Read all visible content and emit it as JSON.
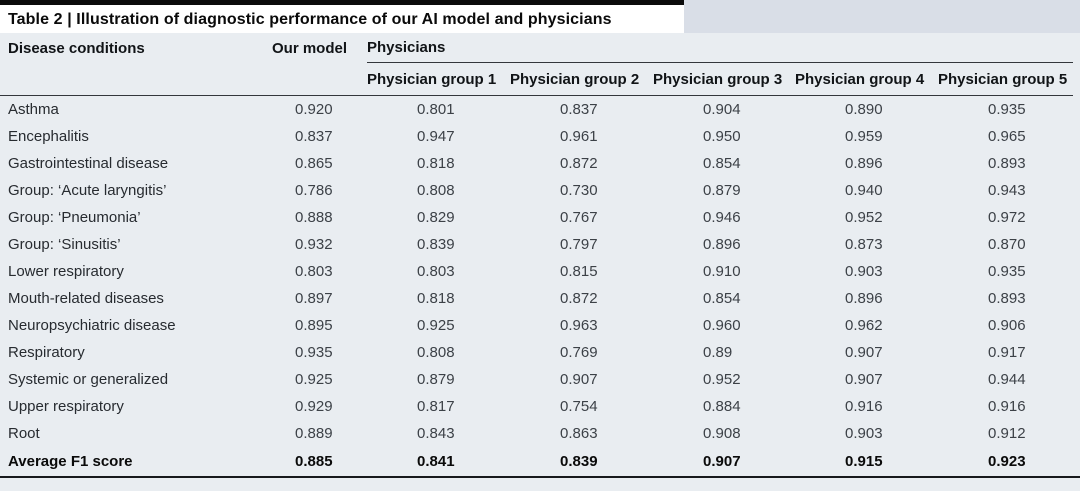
{
  "title": "Table 2 | Illustration of diagnostic performance of our AI model and physicians",
  "table": {
    "columns": {
      "disease": "Disease conditions",
      "our_model": "Our model",
      "physicians": "Physicians",
      "physician_groups": [
        "Physician group 1",
        "Physician group 2",
        "Physician group 3",
        "Physician group 4",
        "Physician group 5"
      ]
    },
    "rows": [
      {
        "disease": "Asthma",
        "values": [
          "0.920",
          "0.801",
          "0.837",
          "0.904",
          "0.890",
          "0.935"
        ],
        "bold": false
      },
      {
        "disease": "Encephalitis",
        "values": [
          "0.837",
          "0.947",
          "0.961",
          "0.950",
          "0.959",
          "0.965"
        ],
        "bold": false
      },
      {
        "disease": "Gastrointestinal disease",
        "values": [
          "0.865",
          "0.818",
          "0.872",
          "0.854",
          "0.896",
          "0.893"
        ],
        "bold": false
      },
      {
        "disease": "Group: ‘Acute laryngitis’",
        "values": [
          "0.786",
          "0.808",
          "0.730",
          "0.879",
          "0.940",
          "0.943"
        ],
        "bold": false
      },
      {
        "disease": "Group: ‘Pneumonia’",
        "values": [
          "0.888",
          "0.829",
          "0.767",
          "0.946",
          "0.952",
          "0.972"
        ],
        "bold": false
      },
      {
        "disease": "Group: ‘Sinusitis’",
        "values": [
          "0.932",
          "0.839",
          "0.797",
          "0.896",
          "0.873",
          "0.870"
        ],
        "bold": false
      },
      {
        "disease": "Lower respiratory",
        "values": [
          "0.803",
          "0.803",
          "0.815",
          "0.910",
          "0.903",
          "0.935"
        ],
        "bold": false
      },
      {
        "disease": "Mouth-related diseases",
        "values": [
          "0.897",
          "0.818",
          "0.872",
          "0.854",
          "0.896",
          "0.893"
        ],
        "bold": false
      },
      {
        "disease": "Neuropsychiatric disease",
        "values": [
          "0.895",
          "0.925",
          "0.963",
          "0.960",
          "0.962",
          "0.906"
        ],
        "bold": false
      },
      {
        "disease": "Respiratory",
        "values": [
          "0.935",
          "0.808",
          "0.769",
          "0.89",
          "0.907",
          "0.917"
        ],
        "bold": false
      },
      {
        "disease": "Systemic or generalized",
        "values": [
          "0.925",
          "0.879",
          "0.907",
          "0.952",
          "0.907",
          "0.944"
        ],
        "bold": false
      },
      {
        "disease": "Upper respiratory",
        "values": [
          "0.929",
          "0.817",
          "0.754",
          "0.884",
          "0.916",
          "0.916"
        ],
        "bold": false
      },
      {
        "disease": "Root",
        "values": [
          "0.889",
          "0.843",
          "0.863",
          "0.908",
          "0.903",
          "0.912"
        ],
        "bold": false
      },
      {
        "disease": "Average F1 score",
        "values": [
          "0.885",
          "0.841",
          "0.839",
          "0.907",
          "0.915",
          "0.923"
        ],
        "bold": true
      }
    ]
  },
  "chart_data": {
    "type": "table",
    "title": "Table 2 | Illustration of diagnostic performance of our AI model and physicians",
    "columns": [
      "Disease conditions",
      "Our model",
      "Physician group 1",
      "Physician group 2",
      "Physician group 3",
      "Physician group 4",
      "Physician group 5"
    ],
    "rows": [
      [
        "Asthma",
        0.92,
        0.801,
        0.837,
        0.904,
        0.89,
        0.935
      ],
      [
        "Encephalitis",
        0.837,
        0.947,
        0.961,
        0.95,
        0.959,
        0.965
      ],
      [
        "Gastrointestinal disease",
        0.865,
        0.818,
        0.872,
        0.854,
        0.896,
        0.893
      ],
      [
        "Group: ‘Acute laryngitis’",
        0.786,
        0.808,
        0.73,
        0.879,
        0.94,
        0.943
      ],
      [
        "Group: ‘Pneumonia’",
        0.888,
        0.829,
        0.767,
        0.946,
        0.952,
        0.972
      ],
      [
        "Group: ‘Sinusitis’",
        0.932,
        0.839,
        0.797,
        0.896,
        0.873,
        0.87
      ],
      [
        "Lower respiratory",
        0.803,
        0.803,
        0.815,
        0.91,
        0.903,
        0.935
      ],
      [
        "Mouth-related diseases",
        0.897,
        0.818,
        0.872,
        0.854,
        0.896,
        0.893
      ],
      [
        "Neuropsychiatric disease",
        0.895,
        0.925,
        0.963,
        0.96,
        0.962,
        0.906
      ],
      [
        "Respiratory",
        0.935,
        0.808,
        0.769,
        0.89,
        0.907,
        0.917
      ],
      [
        "Systemic or generalized",
        0.925,
        0.879,
        0.907,
        0.952,
        0.907,
        0.944
      ],
      [
        "Upper respiratory",
        0.929,
        0.817,
        0.754,
        0.884,
        0.916,
        0.916
      ],
      [
        "Root",
        0.889,
        0.843,
        0.863,
        0.908,
        0.903,
        0.912
      ],
      [
        "Average F1 score",
        0.885,
        0.841,
        0.839,
        0.907,
        0.915,
        0.923
      ]
    ]
  },
  "colors": {
    "top_rule": "#0b0b0b",
    "title_background": "#ffffff",
    "title_right_fill": "#d9dee7",
    "table_background": "#e9edf1",
    "thin_rule": "#33373c",
    "bottom_rule": "#17191c"
  }
}
